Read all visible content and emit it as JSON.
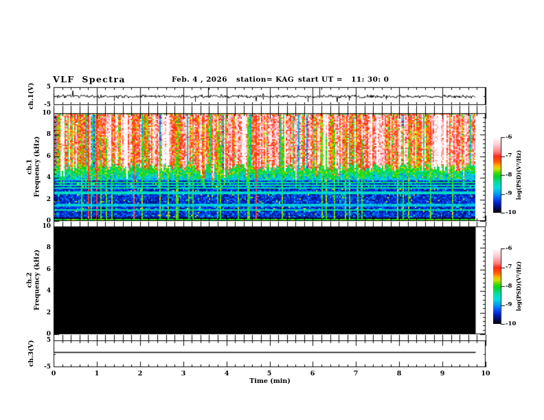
{
  "header": {
    "title": "VLF Spectra",
    "date": "Feb. 4 , 2026",
    "station": "station= KAG",
    "start_ut": "start UT =   11: 30: 0"
  },
  "axes": {
    "time": {
      "label": "Time (min)",
      "ticks": [
        "0",
        "1",
        "2",
        "3",
        "4",
        "5",
        "6",
        "7",
        "8",
        "9",
        "10"
      ],
      "range_min": [
        0,
        10
      ],
      "minor_step_min": 0.2
    },
    "volts": {
      "ch1_label": "ch.1(V)",
      "ch3_label": "ch.3(V)",
      "ticks": [
        "5",
        "-5"
      ],
      "range_V": [
        -5,
        5
      ]
    },
    "freq1": {
      "label_line1": "ch.1",
      "label_line2": "Frequency (kHz)"
    },
    "freq2": {
      "label_line1": "ch.2",
      "label_line2": "Frequency (kHz)"
    },
    "freq_ticks": [
      "10",
      "8",
      "6",
      "4",
      "2",
      "0"
    ],
    "freq_range_kHz": [
      0,
      10
    ],
    "freq_minor_step_kHz": 0.4
  },
  "colorbar": {
    "label": "log(PSD)(V²/Hz)",
    "ticks": [
      "-6",
      "-7",
      "-8",
      "-9",
      "-10"
    ],
    "range": [
      -10,
      -6
    ],
    "stops": [
      [
        0.0,
        "#ffffff"
      ],
      [
        0.1,
        "#ffccd2"
      ],
      [
        0.2,
        "#ff7a7a"
      ],
      [
        0.25,
        "#ff2a1e"
      ],
      [
        0.32,
        "#ff5500"
      ],
      [
        0.38,
        "#ffb400"
      ],
      [
        0.42,
        "#cfe000"
      ],
      [
        0.47,
        "#4ed900"
      ],
      [
        0.52,
        "#00d42a"
      ],
      [
        0.6,
        "#00dfa0"
      ],
      [
        0.67,
        "#00dde0"
      ],
      [
        0.74,
        "#00a6e8"
      ],
      [
        0.8,
        "#0064ff"
      ],
      [
        0.86,
        "#0028d0"
      ],
      [
        0.92,
        "#001080"
      ],
      [
        1.0,
        "#000000"
      ]
    ]
  },
  "chart_data": [
    {
      "type": "line",
      "name": "ch1_waveform",
      "panel": "ch.1(V)",
      "x_range_min": [
        0,
        10
      ],
      "y_range_V": [
        -5,
        5
      ],
      "data_end_min": 9.77,
      "baseline_V": 0,
      "noise_amp_V": 0.45,
      "spike_rate": 0.012,
      "spikes": [
        {
          "t": 1.4,
          "v": -2.6
        },
        {
          "t": 3.27,
          "v": -3.0
        },
        {
          "t": 3.58,
          "v": 4.9
        },
        {
          "t": 4.85,
          "v": -1.8
        },
        {
          "t": 5.88,
          "v": -3.1
        },
        {
          "t": 6.15,
          "v": 4.9
        },
        {
          "t": 6.83,
          "v": -2.3
        },
        {
          "t": 7.7,
          "v": -1.8
        },
        {
          "t": 9.0,
          "v": -1.6
        }
      ]
    },
    {
      "type": "heatmap",
      "name": "ch1_spectrogram",
      "panel": "ch.1 Frequency (kHz)",
      "x_range_min": [
        0,
        10
      ],
      "y_range_kHz": [
        0,
        10
      ],
      "value_range_logPSD": [
        -10,
        -6
      ],
      "data_end_min": 9.77,
      "seed": 42,
      "bands": [
        {
          "f_min": 5.2,
          "f_max": 10.0,
          "base": -6.85,
          "noise": 0.8,
          "note": "intense broadband hiss: red/white vertical streaks"
        },
        {
          "f_min": 4.5,
          "f_max": 5.2,
          "base": -8.1,
          "noise": 0.55,
          "note": "green/cyan transition band"
        },
        {
          "f_min": 3.8,
          "f_max": 4.5,
          "base": -8.75,
          "noise": 0.5,
          "note": "blue/cyan mottled band"
        },
        {
          "f_min": 0.35,
          "f_max": 3.8,
          "base": -9.4,
          "noise": 0.45,
          "note": "dark blue / navy background"
        },
        {
          "f_min": 0.05,
          "f_max": 0.35,
          "base": -9.85,
          "noise": 0.15,
          "note": "near-black band at bottom"
        }
      ],
      "red_bottom_kHz": [
        4.6,
        5.3
      ],
      "cool_column_fraction": 0.1,
      "white_blob_fraction": 0.06,
      "green_vline_fraction": 0.07,
      "orange_vline_fraction": 0.012,
      "h_lines": [
        {
          "f": 3.55,
          "v": -8.35
        },
        {
          "f": 3.3,
          "v": -8.45
        },
        {
          "f": 3.05,
          "v": -8.5
        },
        {
          "f": 2.6,
          "v": -8.6
        },
        {
          "f": 1.45,
          "v": -8.8
        },
        {
          "f": 1.05,
          "v": -8.5
        },
        {
          "f": 0.05,
          "v": -8.0
        }
      ]
    },
    {
      "type": "heatmap",
      "name": "ch2_spectrogram",
      "panel": "ch.2 Frequency (kHz)",
      "x_range_min": [
        0,
        10
      ],
      "y_range_kHz": [
        0,
        10
      ],
      "value_range_logPSD": [
        -10,
        -6
      ],
      "data_end_min": 9.77,
      "fill_value": -10,
      "note": "no signal: entire panel at colour-scale floor (solid black)"
    },
    {
      "type": "line",
      "name": "ch3_waveform",
      "panel": "ch.3(V)",
      "x_range_min": [
        0,
        10
      ],
      "y_range_V": [
        -5,
        5
      ],
      "data_end_min": 9.77,
      "constant_V": 0.5,
      "note": "flat dead-channel trace"
    }
  ]
}
